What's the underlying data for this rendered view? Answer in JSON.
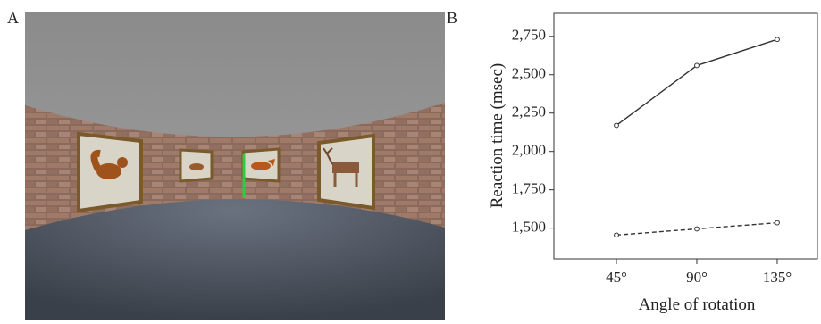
{
  "panel_labels": [
    "A",
    "B"
  ],
  "chart_data": {
    "type": "line",
    "x_label": "Angle of rotation",
    "y_label": "Reaction time (msec)",
    "categories": [
      "45°",
      "90°",
      "135°"
    ],
    "series": [
      {
        "color": "#333333",
        "dash": "solid",
        "values": [
          2170,
          2560,
          2730
        ]
      },
      {
        "color": "#333333",
        "dash": "dashed",
        "values": [
          1455,
          1495,
          1535
        ]
      }
    ],
    "ylim": [
      1300,
      2900
    ],
    "yticks": [
      {
        "value": 1500,
        "label": "1,500"
      },
      {
        "value": 1750,
        "label": "1,750"
      },
      {
        "value": 2000,
        "label": "2,000"
      },
      {
        "value": 2250,
        "label": "2,250"
      },
      {
        "value": 2500,
        "label": "2,500"
      },
      {
        "value": 2750,
        "label": "2,750"
      }
    ]
  }
}
